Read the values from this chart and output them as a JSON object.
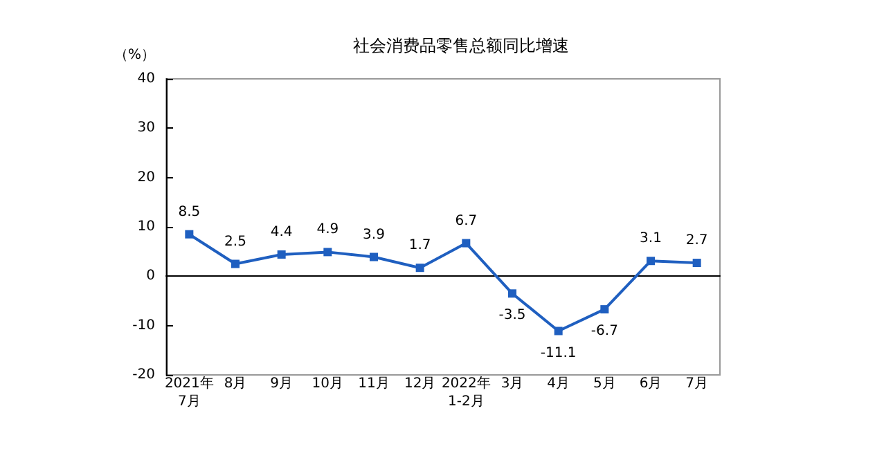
{
  "chart_data": {
    "type": "line",
    "title": "社会消费品零售总额同比增速",
    "ylabel": "（%）",
    "categories": [
      "2021年\n7月",
      "8月",
      "9月",
      "10月",
      "11月",
      "12月",
      "2022年\n1-2月",
      "3月",
      "4月",
      "5月",
      "6月",
      "7月"
    ],
    "series": [
      {
        "color": "#1f5fc0",
        "values": [
          8.5,
          2.5,
          4.4,
          4.9,
          3.9,
          1.7,
          6.7,
          -3.5,
          -11.1,
          -6.7,
          3.1,
          2.7
        ]
      }
    ],
    "ylim": [
      -20,
      40
    ],
    "yticks": [
      -20,
      -10,
      0,
      10,
      20,
      30,
      40
    ],
    "data_labels": true,
    "marker": "square",
    "line_style": "solid"
  }
}
